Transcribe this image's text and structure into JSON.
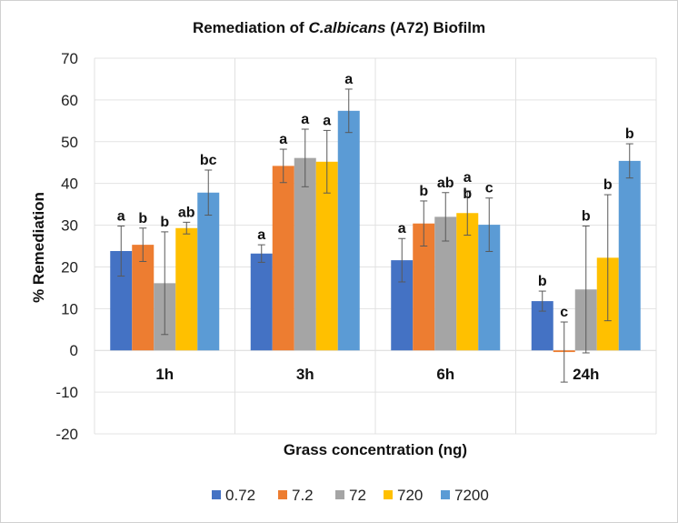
{
  "chart_data": {
    "type": "bar",
    "title_parts": [
      "Remediation of ",
      "C.albicans",
      " (A72)  Biofilm"
    ],
    "xlabel": "Grass concentration (ng)",
    "ylabel": "% Remediation",
    "ylim": [
      -20,
      70
    ],
    "yticks": [
      -20,
      -10,
      0,
      10,
      20,
      30,
      40,
      50,
      60,
      70
    ],
    "grid": true,
    "legend_position": "bottom",
    "categories": [
      "1h",
      "3h",
      "6h",
      "24h"
    ],
    "series": [
      {
        "name": "0.72",
        "color": "#4472C4",
        "values": [
          23.8,
          23.2,
          21.6,
          11.8
        ],
        "errors": [
          6.0,
          2.1,
          5.2,
          2.4
        ],
        "labels": [
          "a",
          "a",
          "a",
          "b"
        ]
      },
      {
        "name": "7.2",
        "color": "#ED7D31",
        "values": [
          25.3,
          44.2,
          30.4,
          -0.4
        ],
        "errors": [
          4.0,
          4.0,
          5.4,
          7.2
        ],
        "labels": [
          "b",
          "a",
          "b",
          "c"
        ]
      },
      {
        "name": "72",
        "color": "#A5A5A5",
        "values": [
          16.1,
          46.1,
          32.0,
          14.6
        ],
        "errors": [
          12.3,
          6.9,
          5.8,
          15.2
        ],
        "labels": [
          "b",
          "a",
          "ab",
          "b"
        ]
      },
      {
        "name": "720",
        "color": "#FFC000",
        "values": [
          29.3,
          45.2,
          32.9,
          22.2
        ],
        "errors": [
          1.4,
          7.5,
          5.3,
          15.1
        ],
        "labels": [
          "ab",
          "a",
          "a\nb",
          "b"
        ]
      },
      {
        "name": "7200",
        "color": "#5B9BD5",
        "values": [
          37.8,
          57.4,
          30.1,
          45.4
        ],
        "errors": [
          5.4,
          5.2,
          6.4,
          4.1
        ],
        "labels": [
          "bc",
          "a",
          "c",
          "b"
        ]
      }
    ]
  }
}
